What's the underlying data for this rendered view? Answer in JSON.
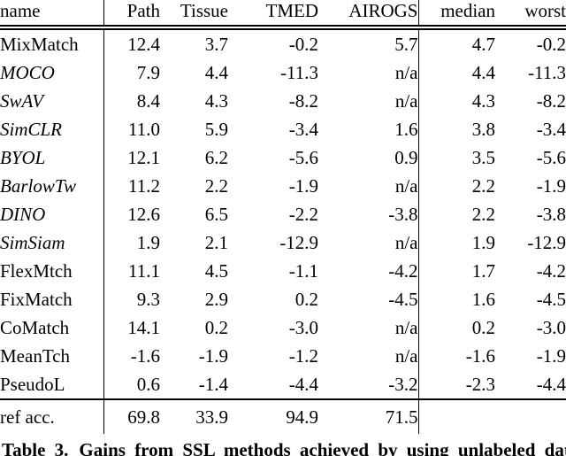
{
  "colors": {
    "text": "#000000",
    "background": "#ffffff",
    "rule": "#000000"
  },
  "table": {
    "columns": [
      "name",
      "Path",
      "Tissue",
      "TMED",
      "AIROGS",
      "median",
      "worst"
    ],
    "rows": [
      {
        "name": "MixMatch",
        "italic": false,
        "values": [
          "12.4",
          "3.7",
          "-0.2",
          "5.7",
          "4.7",
          "-0.2"
        ]
      },
      {
        "name": "MOCO",
        "italic": true,
        "values": [
          "7.9",
          "4.4",
          "-11.3",
          "n/a",
          "4.4",
          "-11.3"
        ]
      },
      {
        "name": "SwAV",
        "italic": true,
        "values": [
          "8.4",
          "4.3",
          "-8.2",
          "n/a",
          "4.3",
          "-8.2"
        ]
      },
      {
        "name": "SimCLR",
        "italic": true,
        "values": [
          "11.0",
          "5.9",
          "-3.4",
          "1.6",
          "3.8",
          "-3.4"
        ]
      },
      {
        "name": "BYOL",
        "italic": true,
        "values": [
          "12.1",
          "6.2",
          "-5.6",
          "0.9",
          "3.5",
          "-5.6"
        ]
      },
      {
        "name": "BarlowTw",
        "italic": true,
        "values": [
          "11.2",
          "2.2",
          "-1.9",
          "n/a",
          "2.2",
          "-1.9"
        ]
      },
      {
        "name": "DINO",
        "italic": true,
        "values": [
          "12.6",
          "6.5",
          "-2.2",
          "-3.8",
          "2.2",
          "-3.8"
        ]
      },
      {
        "name": "SimSiam",
        "italic": true,
        "values": [
          "1.9",
          "2.1",
          "-12.9",
          "n/a",
          "1.9",
          "-12.9"
        ]
      },
      {
        "name": "FlexMtch",
        "italic": false,
        "values": [
          "11.1",
          "4.5",
          "-1.1",
          "-4.2",
          "1.7",
          "-4.2"
        ]
      },
      {
        "name": "FixMatch",
        "italic": false,
        "values": [
          "9.3",
          "2.9",
          "0.2",
          "-4.5",
          "1.6",
          "-4.5"
        ]
      },
      {
        "name": "CoMatch",
        "italic": false,
        "values": [
          "14.1",
          "0.2",
          "-3.0",
          "n/a",
          "0.2",
          "-3.0"
        ]
      },
      {
        "name": "MeanTch",
        "italic": false,
        "values": [
          "-1.6",
          "-1.9",
          "-1.2",
          "n/a",
          "-1.6",
          "-1.9"
        ]
      },
      {
        "name": "PseudoL",
        "italic": false,
        "values": [
          "0.6",
          "-1.4",
          "-4.4",
          "-3.2",
          "-2.3",
          "-4.4"
        ]
      }
    ],
    "footer": {
      "name": "ref acc.",
      "values": [
        "69.8",
        "33.9",
        "94.9",
        "71.5",
        "",
        ""
      ]
    }
  },
  "caption": {
    "label": "Table 3.",
    "text": "Gains from SSL methods achieved by using unlabeled data"
  }
}
